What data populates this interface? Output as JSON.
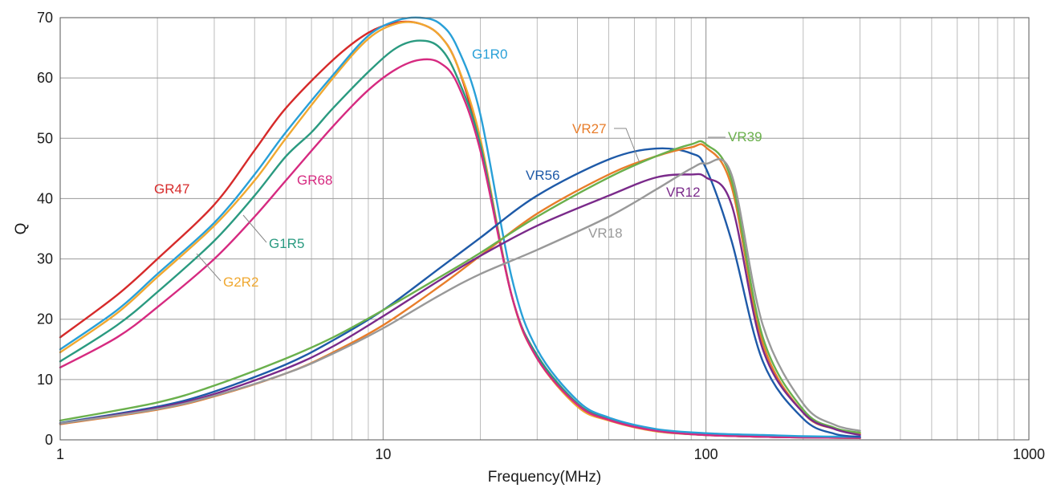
{
  "chart_data": {
    "type": "line",
    "xlabel": "Frequency(MHz)",
    "ylabel": "Q",
    "xscale": "log",
    "xlim": [
      1,
      1000
    ],
    "ylim": [
      0,
      70
    ],
    "xticks": [
      1,
      10,
      100,
      1000
    ],
    "xtick_labels": [
      "1",
      "10",
      "100",
      "1000"
    ],
    "yticks": [
      0,
      10,
      20,
      30,
      40,
      50,
      60,
      70
    ],
    "ytick_labels": [
      "0",
      "10",
      "20",
      "30",
      "40",
      "50",
      "60",
      "70"
    ],
    "grid": true,
    "series": [
      {
        "name": "GR47",
        "color": "#d62a2a",
        "x": [
          1,
          1.5,
          2,
          3,
          4,
          5,
          7,
          9,
          11,
          13,
          15,
          17,
          20,
          25,
          30,
          40,
          50,
          70,
          100,
          150,
          200,
          300
        ],
        "y": [
          17,
          24,
          30,
          39,
          48,
          55,
          63,
          67.5,
          69.2,
          69,
          67,
          62,
          49,
          24,
          14,
          6,
          3.5,
          1.5,
          0.8,
          0.5,
          0.4,
          0.3
        ]
      },
      {
        "name": "G2R2",
        "color": "#f0a830",
        "x": [
          1,
          1.5,
          2,
          3,
          4,
          5,
          7,
          9,
          11,
          13,
          15,
          17,
          20,
          25,
          30,
          40,
          50,
          70,
          100,
          150,
          200,
          300
        ],
        "y": [
          14.5,
          21,
          27,
          35.5,
          43,
          50,
          60,
          66.5,
          69,
          69,
          67,
          62,
          50,
          24,
          13.5,
          5.5,
          3.2,
          1.4,
          0.8,
          0.5,
          0.4,
          0.3
        ]
      },
      {
        "name": "G1R5",
        "color": "#2a9a80",
        "x": [
          1,
          1.5,
          2,
          3,
          4,
          5,
          6,
          7,
          9,
          11,
          13,
          15,
          17,
          20,
          25,
          30,
          40,
          50,
          70,
          100,
          150,
          200,
          300
        ],
        "y": [
          13,
          19,
          24.5,
          33,
          40.5,
          47,
          51,
          55,
          61,
          65,
          66.2,
          65,
          60,
          49,
          24,
          14,
          6,
          3.4,
          1.5,
          0.8,
          0.5,
          0.4,
          0.3
        ]
      },
      {
        "name": "GR68",
        "color": "#d62a80",
        "x": [
          1,
          1.5,
          2,
          3,
          4,
          5,
          7,
          9,
          11,
          13,
          15,
          17,
          20,
          25,
          30,
          40,
          50,
          70,
          100,
          150,
          200,
          300
        ],
        "y": [
          12,
          17,
          22,
          30,
          37,
          43,
          52,
          58,
          61.5,
          63,
          62.5,
          59,
          48,
          24,
          13.5,
          5.8,
          3.3,
          1.5,
          0.8,
          0.5,
          0.4,
          0.3
        ]
      },
      {
        "name": "G1R0",
        "color": "#29a0d8",
        "x": [
          1,
          1.5,
          2,
          3,
          4,
          5,
          7,
          9,
          11,
          13,
          15,
          17,
          20,
          25,
          30,
          40,
          50,
          70,
          100,
          150,
          200,
          300
        ],
        "y": [
          15,
          21.5,
          27.5,
          36,
          44,
          51,
          60.5,
          67,
          69.5,
          70,
          69,
          65,
          54,
          27,
          15,
          6.5,
          3.7,
          1.8,
          1.1,
          0.8,
          0.6,
          0.5
        ]
      },
      {
        "name": "VR56",
        "color": "#1e5aa8",
        "x": [
          1,
          2,
          3,
          5,
          7,
          10,
          15,
          20,
          30,
          50,
          70,
          90,
          100,
          120,
          150,
          200,
          250,
          300
        ],
        "y": [
          2.8,
          5.5,
          8,
          12.5,
          16.5,
          21.5,
          28.5,
          33.5,
          40.5,
          46.5,
          48.3,
          47.5,
          45,
          33,
          13,
          3.5,
          1,
          0.5
        ]
      },
      {
        "name": "VR27",
        "color": "#e87d2a",
        "x": [
          1,
          2,
          3,
          5,
          7,
          10,
          15,
          20,
          30,
          50,
          70,
          90,
          100,
          120,
          150,
          200,
          250,
          300
        ],
        "y": [
          2.6,
          5,
          7.2,
          11,
          14.5,
          19,
          25.5,
          30.5,
          37.5,
          44,
          47,
          48.5,
          48.5,
          42,
          16,
          4.5,
          1.8,
          1
        ]
      },
      {
        "name": "VR39",
        "color": "#6ab04c",
        "x": [
          1,
          2,
          3,
          5,
          7,
          10,
          15,
          20,
          30,
          50,
          70,
          90,
          100,
          120,
          150,
          200,
          250,
          300
        ],
        "y": [
          3.2,
          6.2,
          9,
          13.5,
          17,
          21.5,
          27,
          31,
          37,
          43.5,
          47,
          49,
          49,
          43,
          17,
          5,
          2,
          1.2
        ]
      },
      {
        "name": "VR12",
        "color": "#7a2a8a",
        "x": [
          1,
          2,
          3,
          5,
          7,
          10,
          15,
          20,
          30,
          50,
          70,
          90,
          100,
          120,
          150,
          200,
          250,
          300
        ],
        "y": [
          2.7,
          5.3,
          7.6,
          11.8,
          15.5,
          20.5,
          26.5,
          30.5,
          35.5,
          40.5,
          43.5,
          44,
          43.5,
          39,
          15,
          4.5,
          1.8,
          0.8
        ]
      },
      {
        "name": "VR18",
        "color": "#999999",
        "x": [
          1,
          2,
          3,
          5,
          7,
          10,
          15,
          20,
          30,
          50,
          70,
          90,
          100,
          120,
          150,
          200,
          250,
          300
        ],
        "y": [
          2.7,
          5.1,
          7.3,
          11,
          14.3,
          18.5,
          24,
          27.5,
          31.5,
          37,
          41.5,
          45,
          45.8,
          44,
          19,
          6,
          2.5,
          1.5
        ]
      }
    ],
    "annotations": [
      {
        "text": "GR47",
        "series": "GR47"
      },
      {
        "text": "G2R2",
        "series": "G2R2"
      },
      {
        "text": "G1R5",
        "series": "G1R5"
      },
      {
        "text": "GR68",
        "series": "GR68"
      },
      {
        "text": "G1R0",
        "series": "G1R0"
      },
      {
        "text": "VR56",
        "series": "VR56"
      },
      {
        "text": "VR27",
        "series": "VR27"
      },
      {
        "text": "VR39",
        "series": "VR39"
      },
      {
        "text": "VR12",
        "series": "VR12"
      },
      {
        "text": "VR18",
        "series": "VR18"
      }
    ]
  }
}
